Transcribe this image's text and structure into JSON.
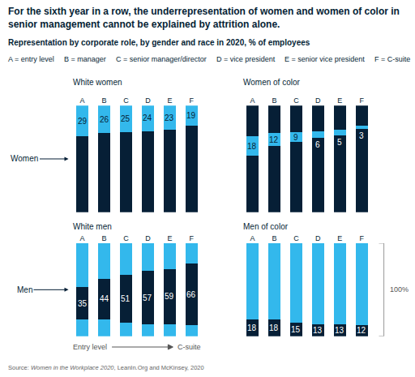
{
  "title": "For the sixth year in a row, the underrepresentation of women and women of color in senior management cannot be explained by attrition alone.",
  "subtitle": "Representation by corporate role, by gender and race in 2020, % of employees",
  "key": [
    "A = entry level",
    "B = manager",
    "C = senior manager/director",
    "D = vice president",
    "E = senior vice president",
    "F = C-suite"
  ],
  "row_labels": [
    "Women",
    "Men"
  ],
  "direction_labels": [
    "Entry level",
    "C-suite"
  ],
  "bracket_label": "100%",
  "source": [
    "Source: ",
    "Women in the Workplace 2020",
    ", LeanIn.Org and McKinsey, 2020"
  ],
  "chart_data": {
    "type": "bar",
    "stacked": true,
    "data_labels": true,
    "grid": false,
    "tick_labels": "x",
    "categories": [
      "A",
      "B",
      "C",
      "D",
      "E",
      "F"
    ],
    "ylim": [
      0,
      100
    ],
    "series": [
      {
        "name": "White women",
        "color": "#33b8ec",
        "values": [
          29,
          26,
          25,
          24,
          23,
          19
        ]
      },
      {
        "name": "Women of color",
        "color": "#33b8ec",
        "values": [
          18,
          12,
          9,
          6,
          5,
          3
        ]
      },
      {
        "name": "White men",
        "color": "#061f36",
        "values": [
          35,
          44,
          51,
          57,
          59,
          66
        ]
      },
      {
        "name": "Men of color",
        "color": "#061f36",
        "values": [
          18,
          18,
          15,
          13,
          13,
          12
        ]
      }
    ]
  }
}
